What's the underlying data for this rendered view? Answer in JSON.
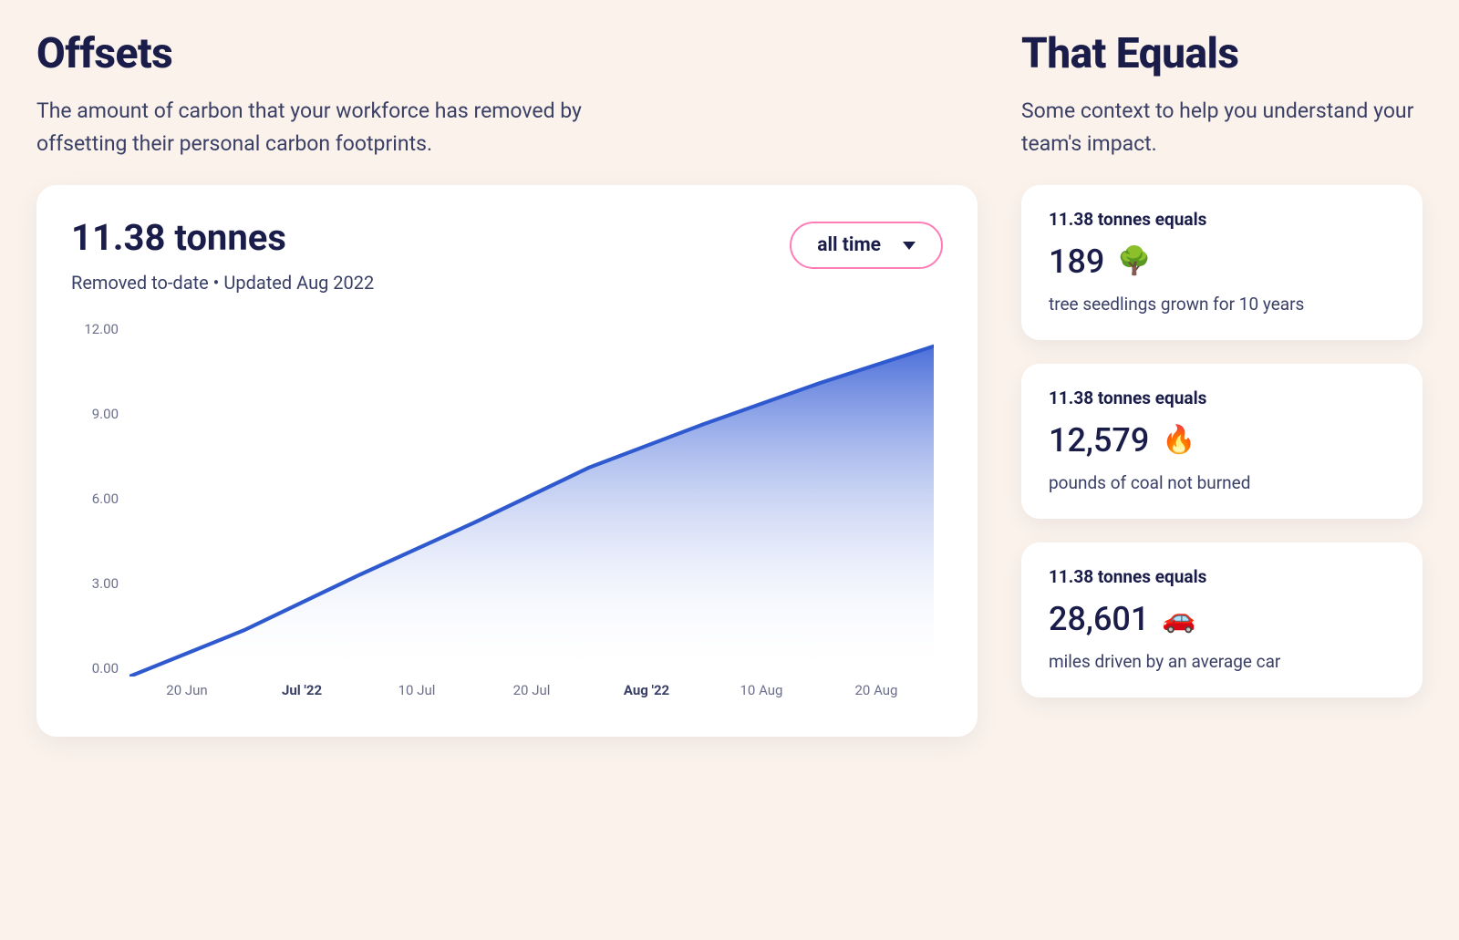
{
  "offsets": {
    "title": "Offsets",
    "description": "The amount of carbon that your workforce has removed by offsetting their personal carbon footprints.",
    "total_label": "11.38 tonnes",
    "subline": "Removed to-date  •  Updated Aug 2022",
    "dropdown": {
      "label": "all time"
    }
  },
  "chart": {
    "type": "area",
    "ylim": [
      0,
      12
    ],
    "ytick_labels": [
      "12.00",
      "9.00",
      "6.00",
      "3.00",
      "0.00"
    ],
    "xtick_labels": [
      "20 Jun",
      "Jul '22",
      "10 Jul",
      "20 Jul",
      "Aug '22",
      "10 Aug",
      "20 Aug"
    ],
    "xtick_bold": [
      false,
      true,
      false,
      false,
      true,
      false,
      false
    ],
    "x_values": [
      0,
      1,
      2,
      3,
      4,
      5,
      6,
      7
    ],
    "y_values": [
      0.0,
      1.6,
      3.5,
      5.3,
      7.2,
      8.7,
      10.1,
      11.38
    ],
    "line_color": "#2f59cf",
    "line_width": 4,
    "fill_top_color": "#3d63d6",
    "fill_bottom_color": "#ffffff",
    "fill_top_opacity": 0.92,
    "background_color": "#ffffff",
    "axis_label_color": "#6c6f8c",
    "axis_label_fontsize": 15
  },
  "equals": {
    "title": "That Equals",
    "description": "Some context to help you understand your team's impact.",
    "cards": [
      {
        "label": "11.38 tonnes equals",
        "value": "189",
        "icon": "🌳",
        "icon_name": "tree-icon",
        "desc": "tree seedlings grown for 10 years"
      },
      {
        "label": "11.38 tonnes equals",
        "value": "12,579",
        "icon": "🔥",
        "icon_name": "flame-icon",
        "desc": "pounds of coal not burned"
      },
      {
        "label": "11.38 tonnes equals",
        "value": "28,601",
        "icon": "🚗",
        "icon_name": "car-icon",
        "desc": "miles driven by an average car"
      }
    ]
  },
  "colors": {
    "page_background": "#faf2eb",
    "card_background": "#ffffff",
    "text_primary": "#1a1d4a",
    "text_secondary": "#3a3f66",
    "dropdown_border": "#ff7cb8"
  }
}
